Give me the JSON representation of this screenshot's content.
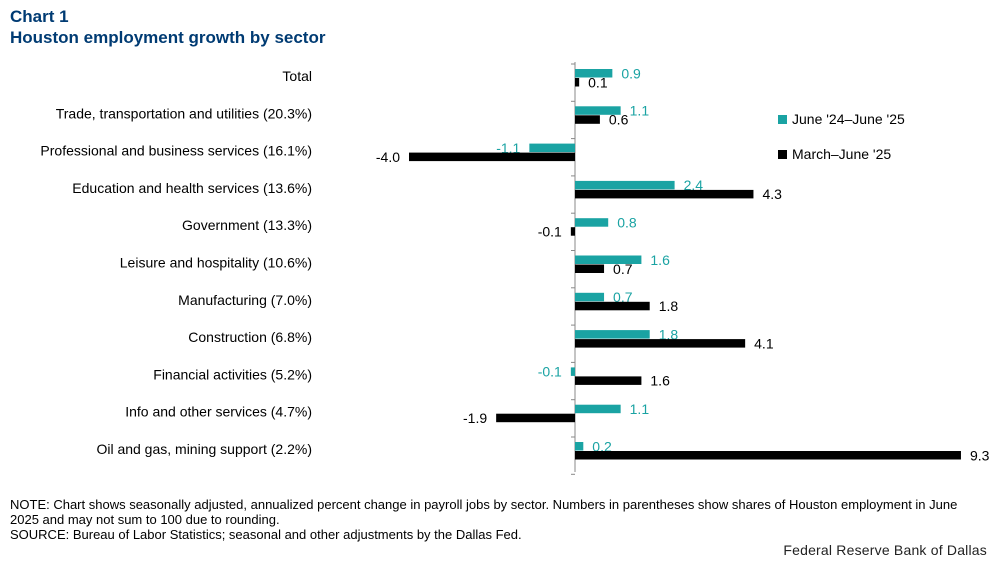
{
  "header": {
    "chart_number": "Chart 1",
    "title": "Houston employment growth by sector"
  },
  "chart_data": {
    "type": "bar",
    "orientation": "horizontal",
    "categories": [
      "Total",
      "Trade, transportation and utilities (20.3%)",
      "Professional and business services (16.1%)",
      "Education and health services (13.6%)",
      "Government (13.3%)",
      "Leisure and hospitality (10.6%)",
      "Manufacturing (7.0%)",
      "Construction (6.8%)",
      "Financial activities (5.2%)",
      "Info and other services (4.7%)",
      "Oil and gas, mining support (2.2%)"
    ],
    "series": [
      {
        "name": "June '24–June '25",
        "color": "#1aa3a3",
        "values": [
          0.9,
          1.1,
          -1.1,
          2.4,
          0.8,
          1.6,
          0.7,
          1.8,
          -0.1,
          1.1,
          0.2
        ]
      },
      {
        "name": "March–June '25",
        "color": "#000000",
        "values": [
          0.1,
          0.6,
          -4.0,
          4.3,
          -0.1,
          0.7,
          1.8,
          4.1,
          1.6,
          -1.9,
          9.3
        ]
      }
    ],
    "xlim": [
      -4.0,
      9.3
    ],
    "grid": false,
    "legend_position": "right"
  },
  "notes": {
    "note": "NOTE: Chart shows seasonally adjusted, annualized percent change in payroll jobs by sector. Numbers in parentheses show shares of Houston employment in June 2025 and may not sum to 100 due to rounding.",
    "source": "SOURCE: Bureau of Labor Statistics; seasonal and other adjustments by the Dallas Fed."
  },
  "credit": "Federal Reserve Bank of Dallas"
}
